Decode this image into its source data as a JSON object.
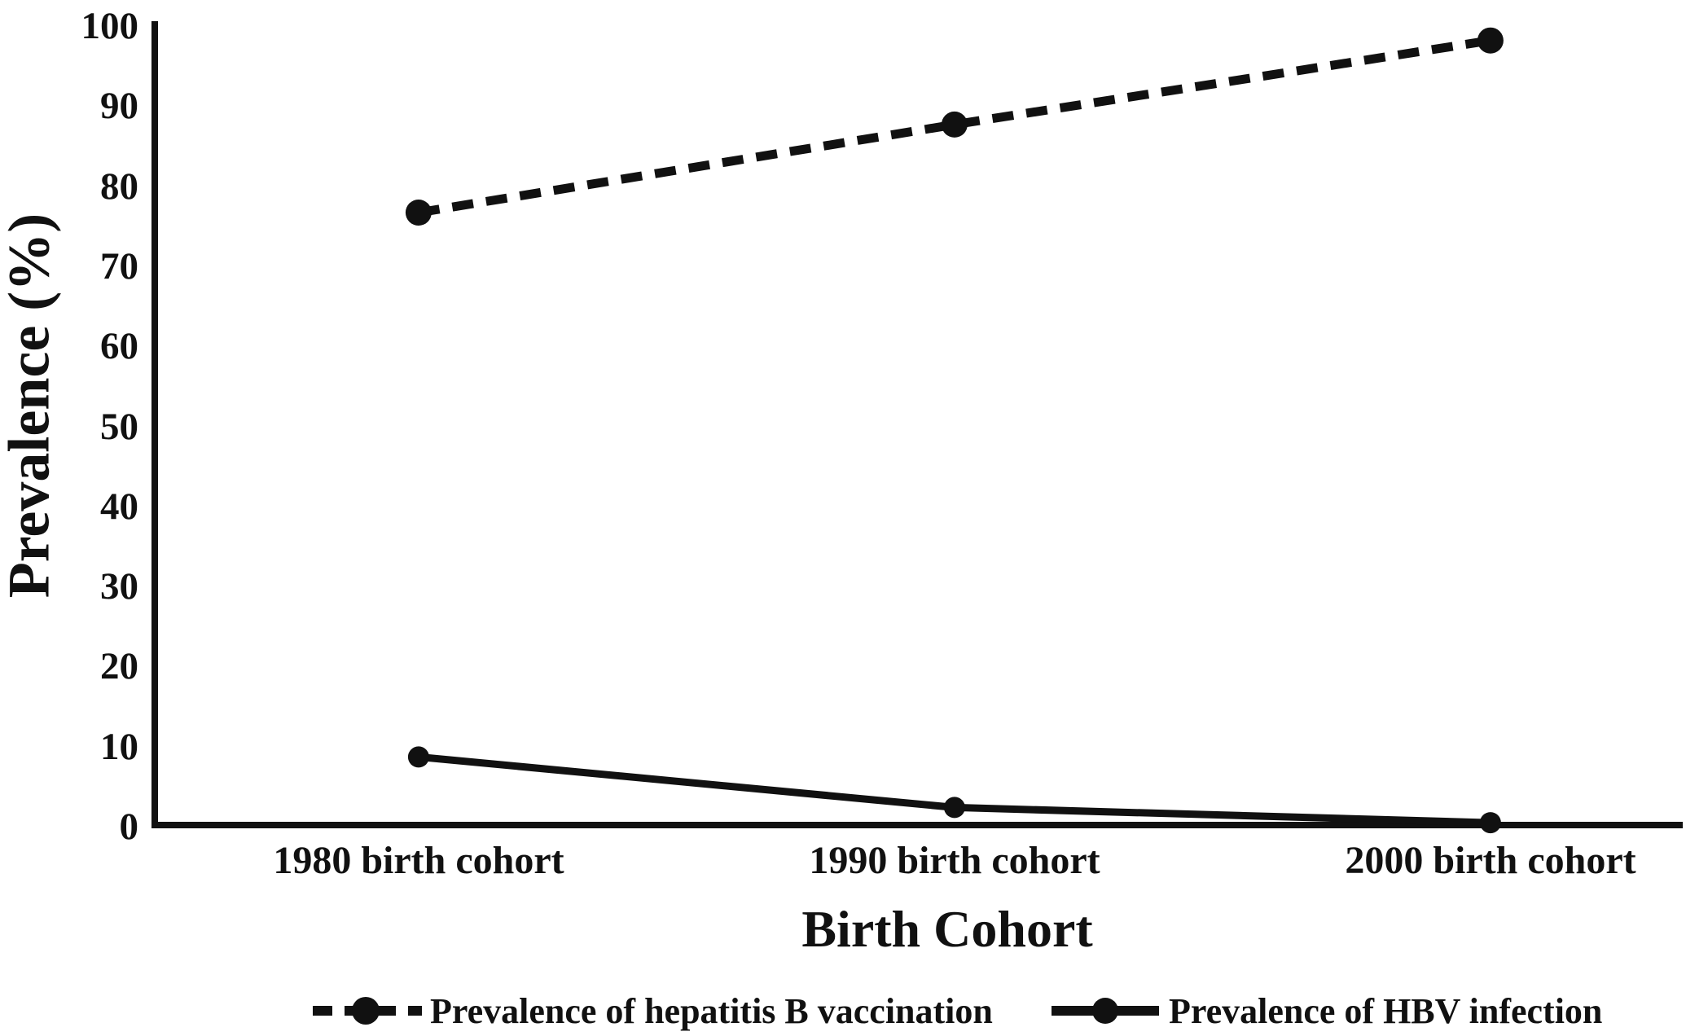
{
  "figure": {
    "background_color": "#ffffff",
    "ink_color": "#111111"
  },
  "chart_data": {
    "type": "line",
    "title": "",
    "xlabel": "Birth Cohort",
    "ylabel": "Prevalence (%)",
    "categories": [
      "1980 birth cohort",
      "1990 birth cohort",
      "2000 birth cohort"
    ],
    "series": [
      {
        "name": "Prevalence of hepatitis B vaccination",
        "style": "dashed",
        "marker": "circle",
        "values": [
          76.5,
          87.5,
          98
        ]
      },
      {
        "name": "Prevalence of HBV infection",
        "style": "solid",
        "marker": "circle",
        "values": [
          8.5,
          2.2,
          0.3
        ]
      }
    ],
    "ylim": [
      0,
      100
    ],
    "yticks": [
      0,
      10,
      20,
      30,
      40,
      50,
      60,
      70,
      80,
      90,
      100
    ],
    "grid": false,
    "legend_position": "bottom"
  }
}
